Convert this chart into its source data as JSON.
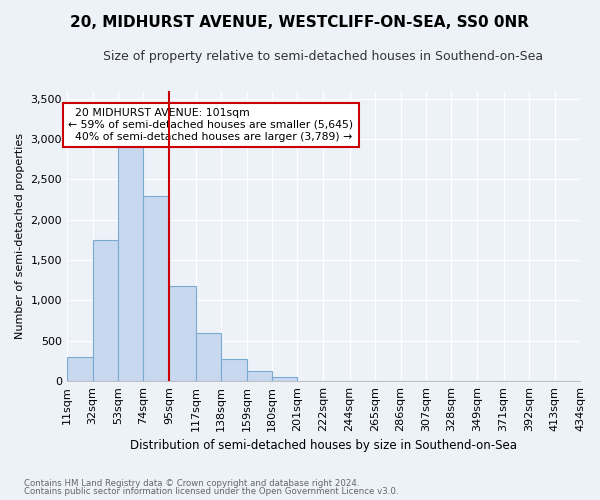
{
  "title": "20, MIDHURST AVENUE, WESTCLIFF-ON-SEA, SS0 0NR",
  "subtitle": "Size of property relative to semi-detached houses in Southend-on-Sea",
  "xlabel": "Distribution of semi-detached houses by size in Southend-on-Sea",
  "ylabel": "Number of semi-detached properties",
  "footnote1": "Contains HM Land Registry data © Crown copyright and database right 2024.",
  "footnote2": "Contains public sector information licensed under the Open Government Licence v3.0.",
  "annotation_line1": "  20 MIDHURST AVENUE: 101sqm",
  "annotation_line2": "← 59% of semi-detached houses are smaller (5,645)",
  "annotation_line3": "  40% of semi-detached houses are larger (3,789) →",
  "bin_edges": [
    11,
    32,
    53,
    74,
    95,
    117,
    138,
    159,
    180,
    201,
    222,
    244,
    265,
    286,
    307,
    328,
    349,
    371,
    392,
    413,
    434
  ],
  "bin_labels": [
    "11sqm",
    "32sqm",
    "53sqm",
    "74sqm",
    "95sqm",
    "117sqm",
    "138sqm",
    "159sqm",
    "180sqm",
    "201sqm",
    "222sqm",
    "244sqm",
    "265sqm",
    "286sqm",
    "307sqm",
    "328sqm",
    "349sqm",
    "371sqm",
    "392sqm",
    "413sqm",
    "434sqm"
  ],
  "bar_values": [
    300,
    1750,
    2900,
    2300,
    1175,
    600,
    280,
    130,
    55,
    0,
    0,
    0,
    0,
    0,
    0,
    0,
    0,
    0,
    0,
    0
  ],
  "bar_color": "#c8d8ee",
  "bar_edge_color": "#7aaad0",
  "vline_x": 4,
  "vline_color": "#cc0000",
  "ylim": [
    0,
    3600
  ],
  "yticks": [
    0,
    500,
    1000,
    1500,
    2000,
    2500,
    3000,
    3500
  ],
  "annotation_box_color": "#ffffff",
  "annotation_box_edge": "#cc0000",
  "bg_color": "#edf2f9",
  "grid_color": "#ffffff",
  "title_fontsize": 11,
  "subtitle_fontsize": 9
}
